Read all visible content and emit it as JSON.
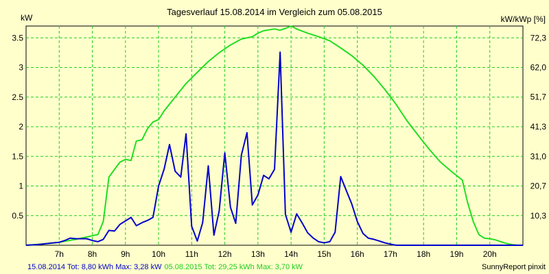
{
  "chart_data": {
    "type": "line",
    "title": "Tagesverlauf 15.08.2014 im Vergleich zum 05.08.2015",
    "ylabel_left": "kW",
    "ylabel_right": "kW/kWp [%]",
    "xlim": [
      6.0,
      21.0
    ],
    "ylim": [
      0,
      3.7
    ],
    "x_ticks": [
      7,
      8,
      9,
      10,
      11,
      12,
      13,
      14,
      15,
      16,
      17,
      18,
      19,
      20
    ],
    "x_tick_labels": [
      "7h",
      "8h",
      "9h",
      "10h",
      "11h",
      "12h",
      "13h",
      "14h",
      "15h",
      "16h",
      "17h",
      "18h",
      "19h",
      "20h"
    ],
    "y_ticks_left": [
      0.5,
      1,
      1.5,
      2,
      2.5,
      3,
      3.5
    ],
    "y_tick_labels_left": [
      "0.5",
      "1",
      "1.5",
      "2",
      "2.5",
      "3",
      "3.5"
    ],
    "y_ticks_right": [
      10.3,
      20.7,
      31.0,
      41.3,
      51.7,
      62.0,
      72.3
    ],
    "y_tick_labels_right": [
      "10,3",
      "20,7",
      "31,0",
      "41,3",
      "51,7",
      "62,0",
      "72,3"
    ],
    "right_axis_max": 76.5,
    "grid": true,
    "series": [
      {
        "name": "15.08.2014",
        "color": "#0000cc",
        "x": [
          6.0,
          6.33,
          6.5,
          6.67,
          6.83,
          7.0,
          7.17,
          7.33,
          7.5,
          7.67,
          7.83,
          8.0,
          8.17,
          8.33,
          8.5,
          8.67,
          8.83,
          9.0,
          9.17,
          9.33,
          9.5,
          9.67,
          9.83,
          10.0,
          10.17,
          10.33,
          10.5,
          10.67,
          10.83,
          11.0,
          11.17,
          11.33,
          11.5,
          11.67,
          11.83,
          12.0,
          12.17,
          12.33,
          12.5,
          12.67,
          12.83,
          13.0,
          13.17,
          13.33,
          13.5,
          13.67,
          13.83,
          14.0,
          14.17,
          14.33,
          14.5,
          14.67,
          14.83,
          15.0,
          15.17,
          15.33,
          15.5,
          15.67,
          15.83,
          16.0,
          16.17,
          16.33,
          16.5,
          16.67,
          16.83,
          17.0,
          17.17,
          17.33,
          17.5,
          17.67,
          17.83,
          18.0,
          18.17,
          18.33,
          18.5,
          18.67,
          18.83,
          19.0,
          19.17,
          19.33,
          19.5,
          19.67,
          19.83,
          20.0,
          20.17,
          20.33,
          20.5,
          20.67,
          20.83,
          21.0
        ],
        "values": [
          0.0,
          0.01,
          0.02,
          0.03,
          0.04,
          0.05,
          0.08,
          0.12,
          0.11,
          0.11,
          0.11,
          0.08,
          0.06,
          0.1,
          0.25,
          0.24,
          0.35,
          0.41,
          0.47,
          0.33,
          0.38,
          0.42,
          0.47,
          1.0,
          1.29,
          1.7,
          1.25,
          1.15,
          1.88,
          0.32,
          0.07,
          0.38,
          1.34,
          0.17,
          0.58,
          1.56,
          0.64,
          0.37,
          1.52,
          1.9,
          0.68,
          0.85,
          1.18,
          1.12,
          1.28,
          3.26,
          0.52,
          0.22,
          0.53,
          0.38,
          0.21,
          0.12,
          0.06,
          0.04,
          0.06,
          0.22,
          1.16,
          0.92,
          0.7,
          0.4,
          0.2,
          0.12,
          0.1,
          0.07,
          0.04,
          0.02,
          0.0,
          0.0,
          0.0,
          0.0,
          0.0,
          0.0,
          0.0,
          0.0,
          0.0,
          0.0,
          0.0,
          0.0,
          0.0,
          0.0,
          0.0,
          0.0,
          0.0,
          0.0,
          0.0,
          0.0,
          0.0,
          0.0,
          0.0,
          0.0
        ]
      },
      {
        "name": "05.08.2015",
        "color": "#22dd22",
        "x": [
          6.0,
          6.5,
          7.0,
          7.5,
          8.0,
          8.17,
          8.33,
          8.5,
          8.67,
          8.83,
          9.0,
          9.17,
          9.33,
          9.5,
          9.67,
          9.83,
          10.0,
          10.17,
          10.5,
          10.83,
          11.17,
          11.5,
          11.83,
          12.17,
          12.5,
          12.83,
          13.0,
          13.17,
          13.5,
          13.67,
          13.83,
          14.0,
          14.17,
          14.5,
          14.83,
          15.17,
          15.5,
          15.83,
          16.17,
          16.5,
          16.83,
          17.17,
          17.5,
          17.83,
          18.17,
          18.5,
          18.83,
          19.17,
          19.33,
          19.5,
          19.67,
          19.83,
          20.0,
          20.17,
          20.33,
          20.5,
          20.67,
          20.83,
          21.0
        ],
        "values": [
          0.0,
          0.02,
          0.05,
          0.1,
          0.16,
          0.18,
          0.4,
          1.15,
          1.28,
          1.4,
          1.45,
          1.43,
          1.76,
          1.78,
          1.97,
          2.08,
          2.12,
          2.27,
          2.5,
          2.73,
          2.92,
          3.1,
          3.25,
          3.38,
          3.48,
          3.52,
          3.58,
          3.62,
          3.65,
          3.63,
          3.66,
          3.7,
          3.65,
          3.58,
          3.52,
          3.45,
          3.33,
          3.2,
          3.04,
          2.85,
          2.63,
          2.38,
          2.1,
          1.86,
          1.62,
          1.41,
          1.25,
          1.1,
          0.72,
          0.4,
          0.18,
          0.12,
          0.11,
          0.09,
          0.06,
          0.03,
          0.01,
          0.0,
          0.0
        ]
      }
    ]
  },
  "footer": {
    "series1_text": "15.08.2014 Tot: 8,80 kWh Max: 3,28 kW",
    "series2_text": "05.08.2015 Tot: 29,25 kWh Max: 3,70 kW",
    "credit": "SunnyReport pinxit"
  }
}
